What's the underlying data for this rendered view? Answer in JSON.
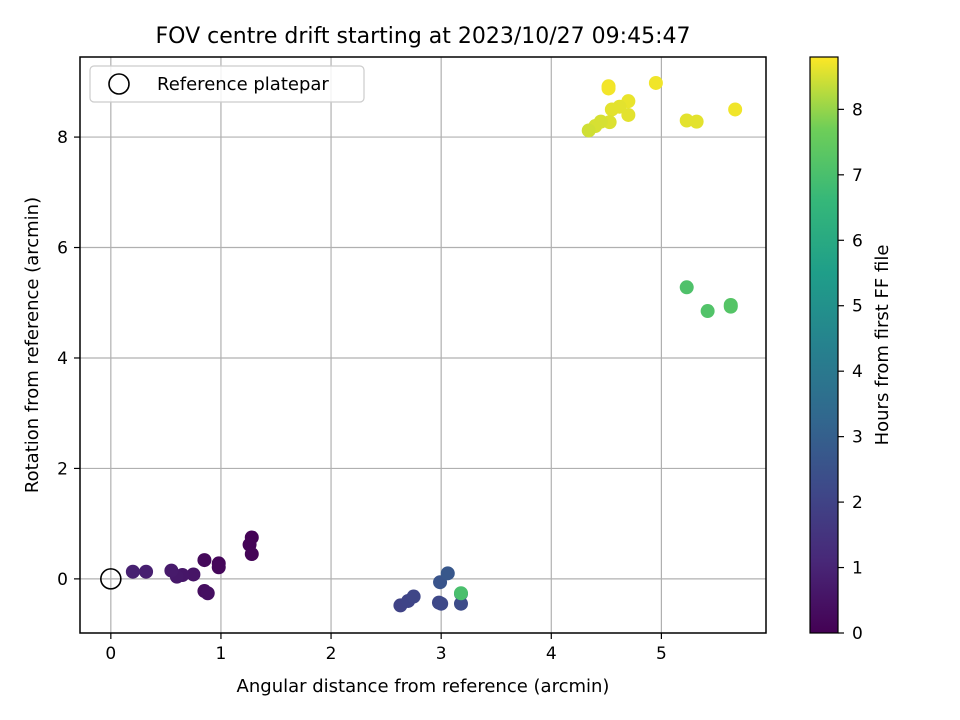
{
  "chart_data": {
    "type": "scatter",
    "title": "FOV centre drift starting at 2023/10/27 09:45:47",
    "xlabel": "Angular distance from reference (arcmin)",
    "ylabel": "Rotation from reference (arcmin)",
    "xlim": [
      -0.28,
      5.95
    ],
    "ylim": [
      -0.98,
      9.45
    ],
    "xticks": [
      0,
      1,
      2,
      3,
      4,
      5
    ],
    "yticks": [
      0,
      2,
      4,
      6,
      8
    ],
    "grid": true,
    "legend": {
      "placement": "top-left",
      "entries": [
        "Reference platepar"
      ]
    },
    "reference_point": {
      "x": 0,
      "y": 0,
      "label": "Reference platepar"
    },
    "colorbar": {
      "label": "Hours from first FF file",
      "colormap": "viridis",
      "range": [
        0,
        8.8
      ],
      "ticks": [
        0,
        1,
        2,
        3,
        4,
        5,
        6,
        7,
        8
      ]
    },
    "points": [
      {
        "x": 1.28,
        "y": 0.75,
        "c": 0.05
      },
      {
        "x": 1.26,
        "y": 0.62,
        "c": 0.08
      },
      {
        "x": 1.28,
        "y": 0.45,
        "c": 0.1
      },
      {
        "x": 0.98,
        "y": 0.28,
        "c": 0.15
      },
      {
        "x": 0.98,
        "y": 0.21,
        "c": 0.18
      },
      {
        "x": 0.85,
        "y": 0.34,
        "c": 0.22
      },
      {
        "x": 0.85,
        "y": -0.22,
        "c": 0.35
      },
      {
        "x": 0.88,
        "y": -0.26,
        "c": 0.4
      },
      {
        "x": 0.75,
        "y": 0.08,
        "c": 0.55
      },
      {
        "x": 0.65,
        "y": 0.07,
        "c": 0.6
      },
      {
        "x": 0.6,
        "y": 0.04,
        "c": 0.65
      },
      {
        "x": 0.55,
        "y": 0.15,
        "c": 0.7
      },
      {
        "x": 0.32,
        "y": 0.13,
        "c": 0.85
      },
      {
        "x": 0.2,
        "y": 0.13,
        "c": 0.9
      },
      {
        "x": 2.63,
        "y": -0.48,
        "c": 2.0
      },
      {
        "x": 2.7,
        "y": -0.4,
        "c": 2.05
      },
      {
        "x": 2.75,
        "y": -0.32,
        "c": 2.1
      },
      {
        "x": 2.98,
        "y": -0.43,
        "c": 2.15
      },
      {
        "x": 3.0,
        "y": -0.45,
        "c": 2.2
      },
      {
        "x": 3.18,
        "y": -0.45,
        "c": 2.3
      },
      {
        "x": 3.18,
        "y": -0.27,
        "c": 2.4
      },
      {
        "x": 2.99,
        "y": -0.06,
        "c": 2.6
      },
      {
        "x": 3.06,
        "y": 0.1,
        "c": 2.7
      },
      {
        "x": 3.18,
        "y": -0.26,
        "c": 7.0
      },
      {
        "x": 5.23,
        "y": 5.28,
        "c": 7.1
      },
      {
        "x": 5.42,
        "y": 4.85,
        "c": 7.15
      },
      {
        "x": 5.63,
        "y": 4.93,
        "c": 7.2
      },
      {
        "x": 5.63,
        "y": 4.96,
        "c": 7.22
      },
      {
        "x": 4.52,
        "y": 8.92,
        "c": 8.7
      },
      {
        "x": 4.52,
        "y": 8.88,
        "c": 8.72
      },
      {
        "x": 4.95,
        "y": 8.98,
        "c": 8.7
      },
      {
        "x": 4.7,
        "y": 8.65,
        "c": 8.65
      },
      {
        "x": 4.62,
        "y": 8.55,
        "c": 8.6
      },
      {
        "x": 4.55,
        "y": 8.5,
        "c": 8.6
      },
      {
        "x": 4.7,
        "y": 8.4,
        "c": 8.6
      },
      {
        "x": 4.53,
        "y": 8.27,
        "c": 8.55
      },
      {
        "x": 4.45,
        "y": 8.28,
        "c": 8.5
      },
      {
        "x": 4.4,
        "y": 8.2,
        "c": 8.5
      },
      {
        "x": 4.34,
        "y": 8.12,
        "c": 8.45
      },
      {
        "x": 5.23,
        "y": 8.3,
        "c": 8.6
      },
      {
        "x": 5.32,
        "y": 8.28,
        "c": 8.6
      },
      {
        "x": 5.67,
        "y": 8.5,
        "c": 8.7
      }
    ]
  }
}
